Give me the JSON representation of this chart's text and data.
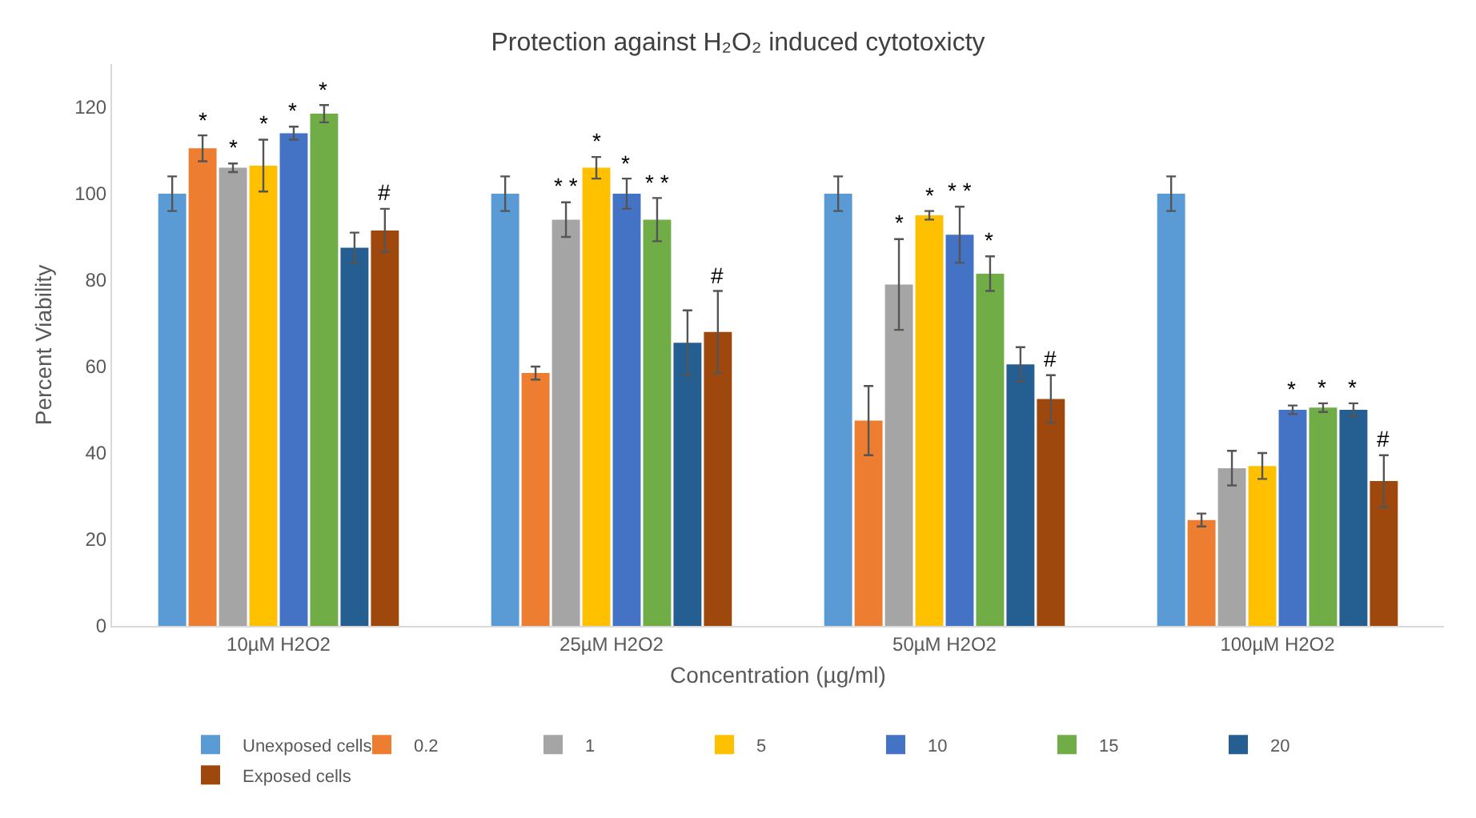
{
  "chart_data": {
    "type": "bar",
    "title": "Protection against H₂O₂ induced cytotoxicty",
    "xlabel": "Concentration (µg/ml)",
    "ylabel": "Percent Viability",
    "categories": [
      "10µM H2O2",
      "25µM H2O2",
      "50µM H2O2",
      "100µM H2O2"
    ],
    "series": [
      {
        "name": "Unexposed cells",
        "color": "#5b9bd5",
        "values": [
          100,
          100,
          100,
          100
        ],
        "errors": [
          4,
          4,
          4,
          4
        ]
      },
      {
        "name": "0.2",
        "color": "#ed7d31",
        "values": [
          110.5,
          58.5,
          47.5,
          24.5
        ],
        "errors": [
          3,
          1.5,
          8,
          1.5
        ],
        "value_labels": [
          "*",
          null,
          null,
          null
        ]
      },
      {
        "name": "1",
        "color": "#a5a5a5",
        "values": [
          106,
          94,
          79,
          36.5
        ],
        "errors": [
          1,
          4,
          10.5,
          4
        ],
        "value_labels": [
          "*",
          "* *",
          "*",
          null
        ]
      },
      {
        "name": "5",
        "color": "#ffc000",
        "values": [
          106.5,
          106,
          95,
          37
        ],
        "errors": [
          6,
          2.5,
          1,
          3
        ],
        "value_labels": [
          "*",
          "*",
          "*",
          null
        ]
      },
      {
        "name": "10",
        "color": "#4472c4",
        "values": [
          114,
          100,
          90.5,
          50
        ],
        "errors": [
          1.5,
          3.5,
          6.5,
          1
        ],
        "value_labels": [
          "*",
          "*",
          "* *",
          "*"
        ]
      },
      {
        "name": "15",
        "color": "#70ad47",
        "values": [
          118.5,
          94,
          81.5,
          50.5
        ],
        "errors": [
          2,
          5,
          4,
          1
        ],
        "value_labels": [
          "*",
          "* *",
          "*",
          "*"
        ]
      },
      {
        "name": "20",
        "color": "#255e91",
        "values": [
          87.5,
          65.5,
          60.5,
          50
        ],
        "errors": [
          3.5,
          7.5,
          4,
          1.5
        ],
        "value_labels": [
          null,
          null,
          null,
          "*"
        ]
      },
      {
        "name": "Exposed cells",
        "color": "#9e480e",
        "values": [
          91.5,
          68,
          52.5,
          33.5
        ],
        "errors": [
          5,
          9.5,
          5.5,
          6
        ],
        "value_labels": [
          "#",
          "#",
          "#",
          "#"
        ]
      }
    ],
    "ylim": [
      0,
      130
    ],
    "yticks": [
      0,
      20,
      40,
      60,
      80,
      100,
      120
    ],
    "grid": false,
    "legend": "bottom"
  }
}
